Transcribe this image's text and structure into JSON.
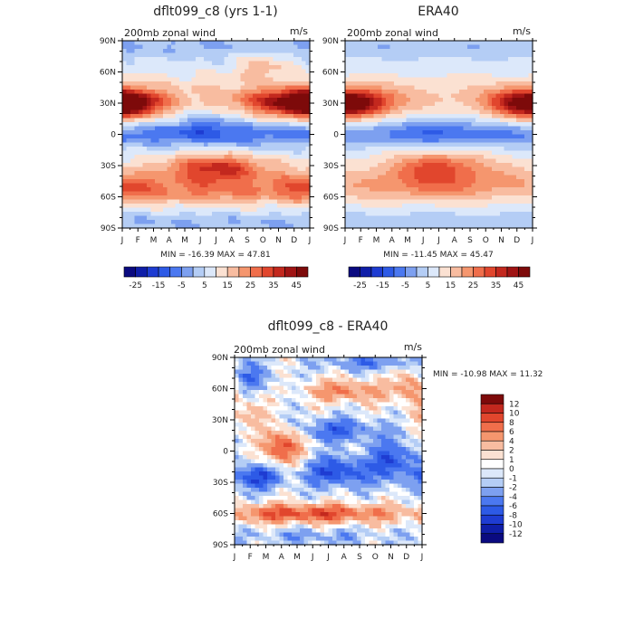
{
  "figure": {
    "background": "#ffffff"
  },
  "chart_data": [
    {
      "type": "heatmap",
      "title": "dflt099_c8 (yrs 1-1)",
      "left_label": "200mb zonal wind",
      "right_label": "m/s",
      "x_ticks": [
        "J",
        "F",
        "M",
        "A",
        "M",
        "J",
        "J",
        "A",
        "S",
        "O",
        "N",
        "D",
        "J"
      ],
      "y_ticks": [
        "90N",
        "60N",
        "30N",
        "0",
        "30S",
        "60S",
        "90S"
      ],
      "y_range": [
        -90,
        90
      ],
      "min_label": "MIN = -16.39 MAX = 47.81",
      "min": -16.39,
      "max": 47.81,
      "colorbar": {
        "levels": [
          -25,
          -20,
          -15,
          -10,
          -5,
          0,
          5,
          10,
          15,
          20,
          25,
          30,
          35,
          40,
          45
        ],
        "labels": [
          "-25",
          "-15",
          "-5",
          "5",
          "15",
          "25",
          "35",
          "45"
        ],
        "colors": [
          "#0a0a80",
          "#0f1ea8",
          "#1e3cd2",
          "#2d5ae6",
          "#4b78f0",
          "#7da0f0",
          "#b4cdf5",
          "#dce8fa",
          "#fbe1d2",
          "#f8bca0",
          "#f5966e",
          "#f06e4b",
          "#e1462d",
          "#c3281e",
          "#a01414",
          "#7d0a0a"
        ]
      },
      "field": "model"
    },
    {
      "type": "heatmap",
      "title": "ERA40",
      "left_label": "200mb zonal wind",
      "right_label": "m/s",
      "x_ticks": [
        "J",
        "F",
        "M",
        "A",
        "M",
        "J",
        "J",
        "A",
        "S",
        "O",
        "N",
        "D",
        "J"
      ],
      "y_ticks": [
        "90N",
        "60N",
        "30N",
        "0",
        "30S",
        "60S",
        "90S"
      ],
      "y_range": [
        -90,
        90
      ],
      "min_label": "MIN = -11.45 MAX = 45.47",
      "min": -11.45,
      "max": 45.47,
      "colorbar": {
        "levels": [
          -25,
          -20,
          -15,
          -10,
          -5,
          0,
          5,
          10,
          15,
          20,
          25,
          30,
          35,
          40,
          45
        ],
        "labels": [
          "-25",
          "-15",
          "-5",
          "5",
          "15",
          "25",
          "35",
          "45"
        ],
        "colors": [
          "#0a0a80",
          "#0f1ea8",
          "#1e3cd2",
          "#2d5ae6",
          "#4b78f0",
          "#7da0f0",
          "#b4cdf5",
          "#dce8fa",
          "#fbe1d2",
          "#f8bca0",
          "#f5966e",
          "#f06e4b",
          "#e1462d",
          "#c3281e",
          "#a01414",
          "#7d0a0a"
        ]
      },
      "field": "obs"
    },
    {
      "type": "heatmap",
      "title": "dflt099_c8 - ERA40",
      "left_label": "200mb zonal wind",
      "right_label": "m/s",
      "x_ticks": [
        "J",
        "F",
        "M",
        "A",
        "M",
        "J",
        "J",
        "A",
        "S",
        "O",
        "N",
        "D",
        "J"
      ],
      "y_ticks": [
        "90N",
        "60N",
        "30N",
        "0",
        "30S",
        "60S",
        "90S"
      ],
      "y_range": [
        -90,
        90
      ],
      "min_label": "MIN = -10.98 MAX =  11.32",
      "min": -10.98,
      "max": 11.32,
      "colorbar": {
        "levels": [
          -12,
          -10,
          -8,
          -6,
          -4,
          -2,
          -1,
          0,
          1,
          2,
          4,
          6,
          8,
          10,
          12
        ],
        "labels": [
          "12",
          "10",
          "8",
          "6",
          "4",
          "2",
          "1",
          "0",
          "-1",
          "-2",
          "-4",
          "-6",
          "-8",
          "-10",
          "-12"
        ],
        "colors": [
          "#0a0a80",
          "#0f1ea8",
          "#1e3cd2",
          "#2d5ae6",
          "#4b78f0",
          "#7da0f0",
          "#b4cdf5",
          "#dce8fa",
          "#ffffff",
          "#fbe1d2",
          "#f8bca0",
          "#f5966e",
          "#f06e4b",
          "#e1462d",
          "#c3281e",
          "#7d0a0a"
        ]
      },
      "field": "diff"
    }
  ]
}
